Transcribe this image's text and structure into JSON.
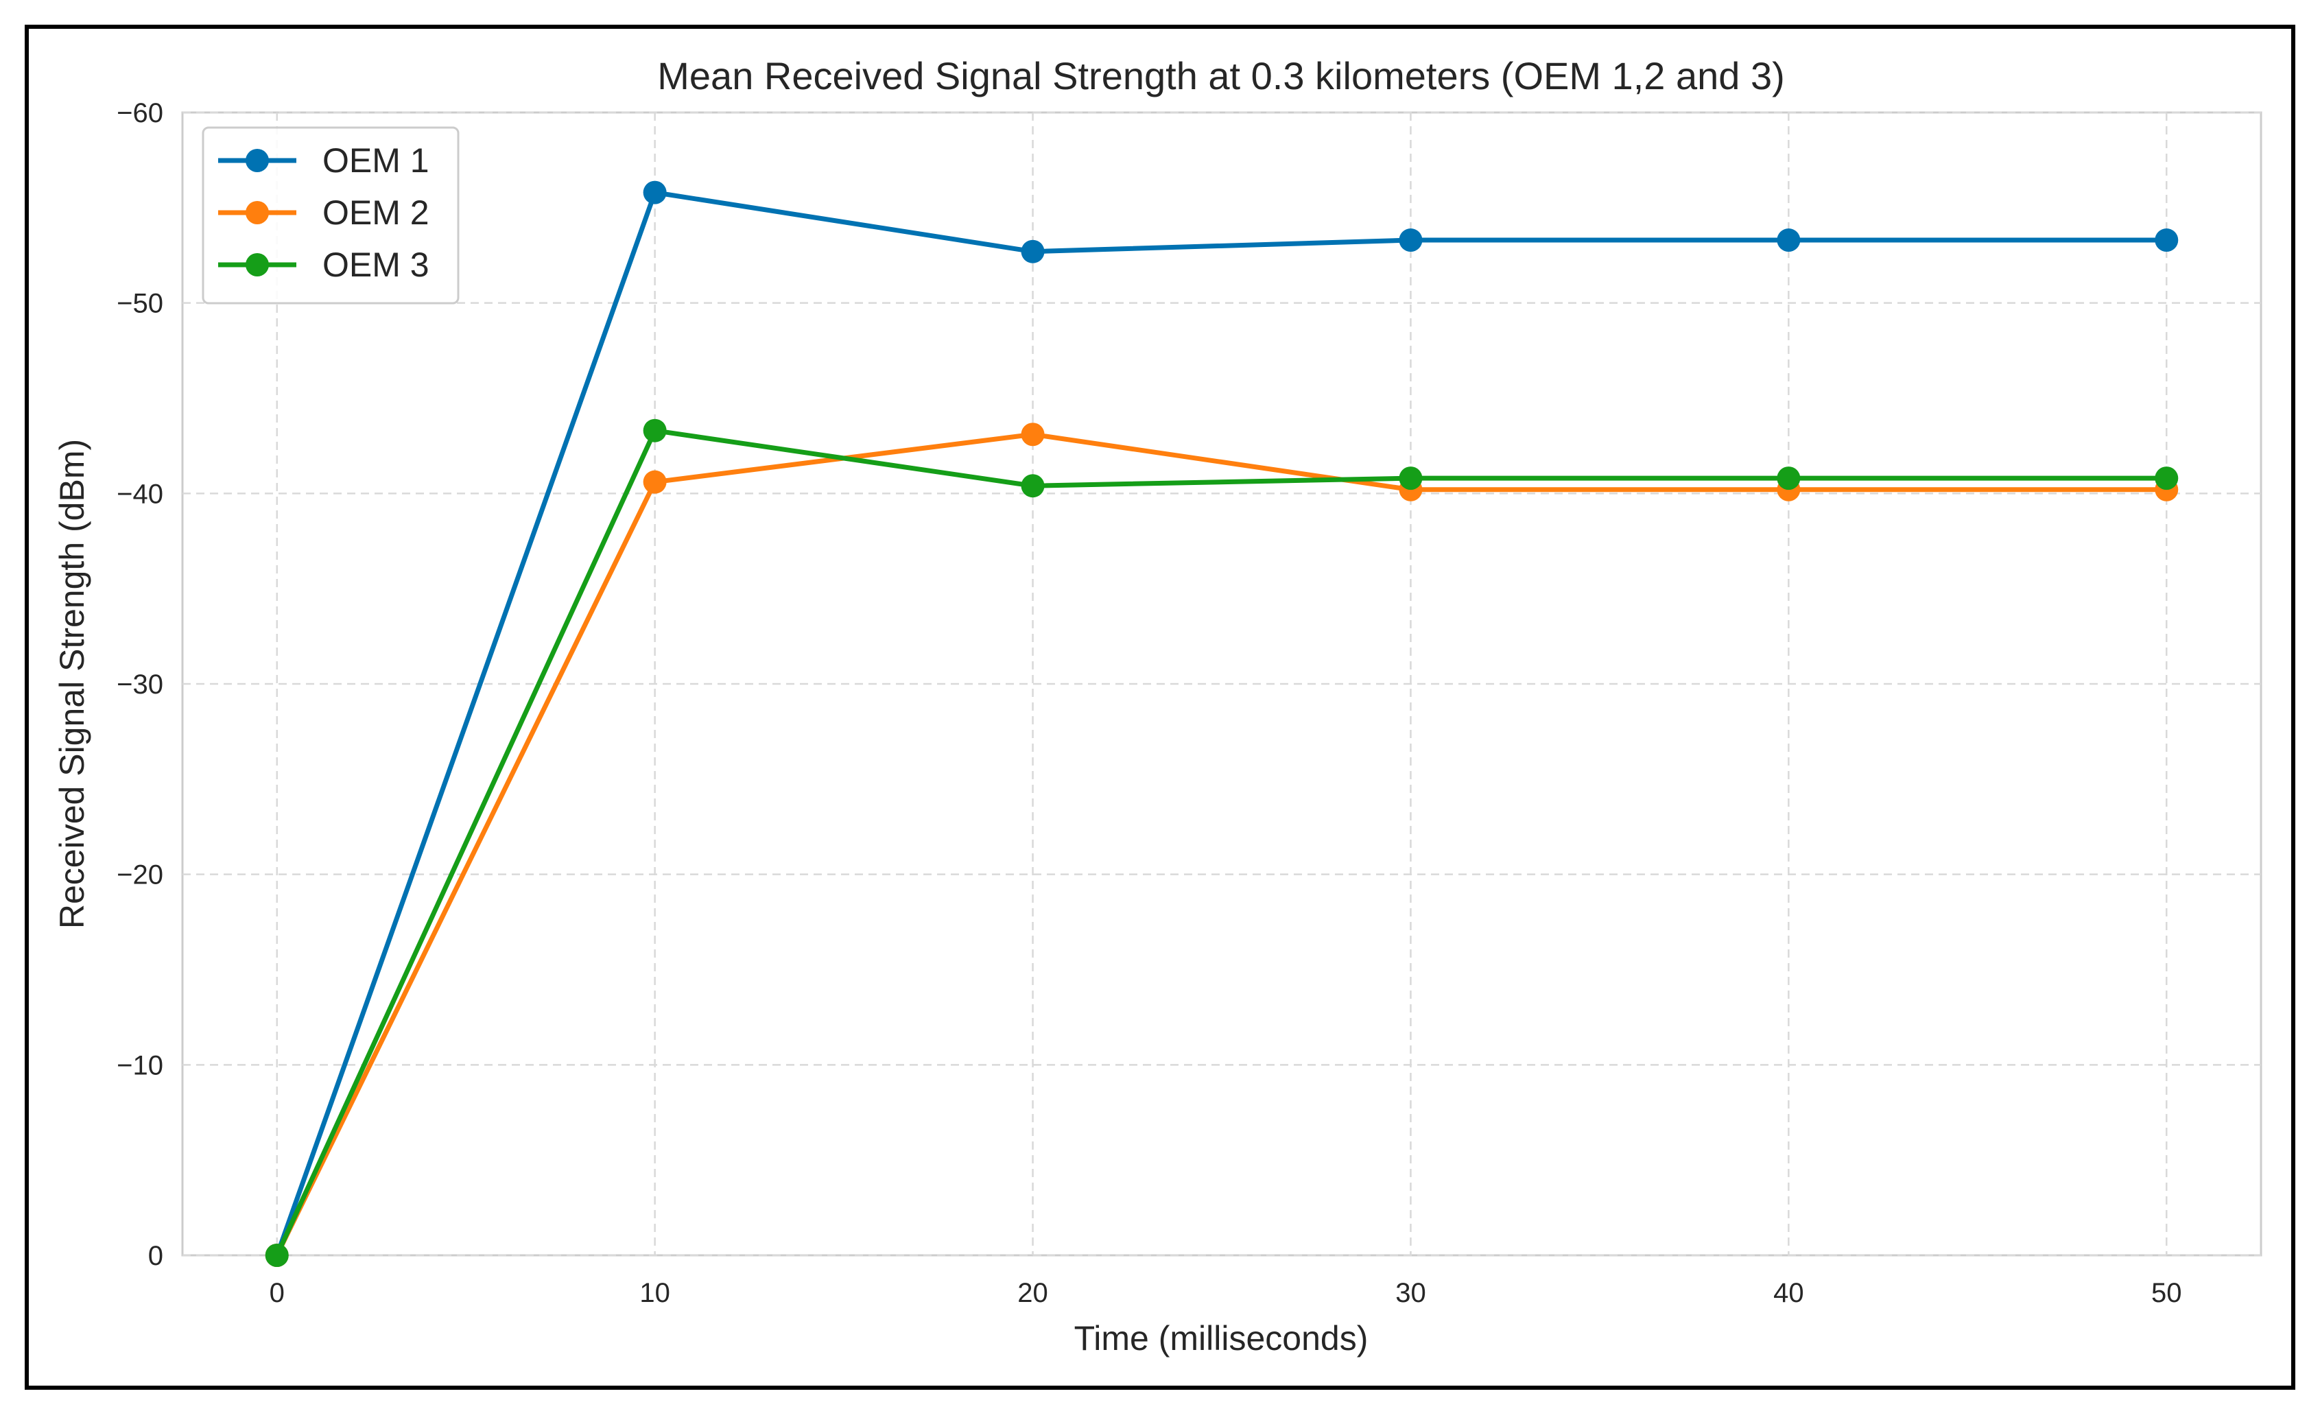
{
  "chart_data": {
    "type": "line",
    "title": "Mean Received Signal Strength at 0.3 kilometers (OEM 1,2 and 3)",
    "xlabel": "Time (milliseconds)",
    "ylabel": "Received Signal Strength (dBm)",
    "x": [
      0,
      10,
      20,
      30,
      40,
      50
    ],
    "xlim": [
      -2.5,
      52.5
    ],
    "ylim": [
      0,
      -60
    ],
    "y_inverted": true,
    "xticks": [
      0,
      10,
      20,
      30,
      40,
      50
    ],
    "xtick_labels": [
      "0",
      "10",
      "20",
      "30",
      "40",
      "50"
    ],
    "yticks": [
      0,
      -10,
      -20,
      -30,
      -40,
      -50,
      -60
    ],
    "ytick_labels": [
      "0",
      "−10",
      "−20",
      "−30",
      "−40",
      "−50",
      "−60"
    ],
    "grid": true,
    "legend_position": "top-left",
    "series": [
      {
        "name": "OEM 1",
        "color": "#0072b2",
        "marker": "circle",
        "values": [
          0,
          -55.8,
          -52.7,
          -53.3,
          -53.3,
          -53.3
        ]
      },
      {
        "name": "OEM 2",
        "color": "#ff7f0e",
        "marker": "circle",
        "values": [
          0,
          -40.6,
          -43.1,
          -40.2,
          -40.2,
          -40.2
        ]
      },
      {
        "name": "OEM 3",
        "color": "#159e18",
        "marker": "circle",
        "values": [
          0,
          -43.3,
          -40.4,
          -40.8,
          -40.8,
          -40.8
        ]
      }
    ]
  }
}
